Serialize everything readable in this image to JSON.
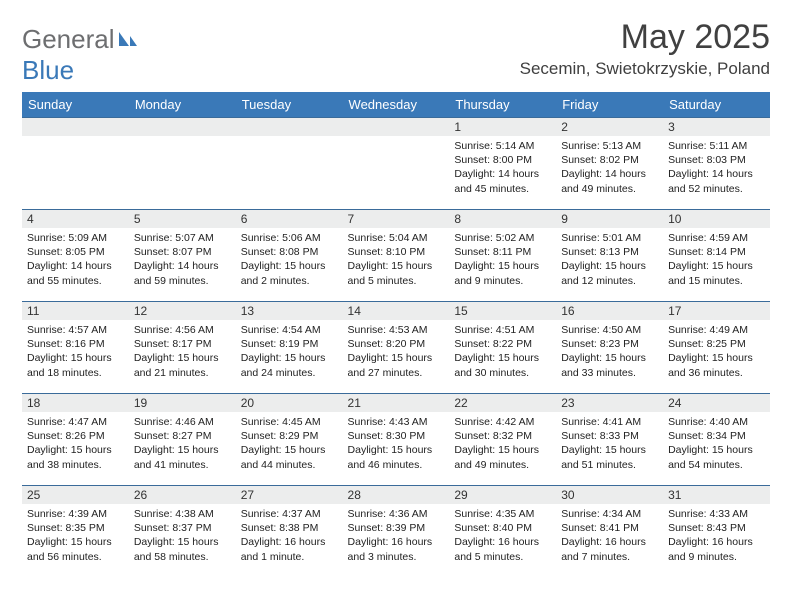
{
  "logo": {
    "general": "General",
    "blue": "Blue"
  },
  "title": "May 2025",
  "location": "Secemin, Swietokrzyskie, Poland",
  "header_bg": "#3a79b8",
  "header_text": "#ffffff",
  "daynum_bg": "#eceded",
  "border_color": "#3a6b9a",
  "weekdays": [
    "Sunday",
    "Monday",
    "Tuesday",
    "Wednesday",
    "Thursday",
    "Friday",
    "Saturday"
  ],
  "weeks": [
    [
      null,
      null,
      null,
      null,
      {
        "n": "1",
        "sr": "5:14 AM",
        "ss": "8:00 PM",
        "dl": "14 hours and 45 minutes."
      },
      {
        "n": "2",
        "sr": "5:13 AM",
        "ss": "8:02 PM",
        "dl": "14 hours and 49 minutes."
      },
      {
        "n": "3",
        "sr": "5:11 AM",
        "ss": "8:03 PM",
        "dl": "14 hours and 52 minutes."
      }
    ],
    [
      {
        "n": "4",
        "sr": "5:09 AM",
        "ss": "8:05 PM",
        "dl": "14 hours and 55 minutes."
      },
      {
        "n": "5",
        "sr": "5:07 AM",
        "ss": "8:07 PM",
        "dl": "14 hours and 59 minutes."
      },
      {
        "n": "6",
        "sr": "5:06 AM",
        "ss": "8:08 PM",
        "dl": "15 hours and 2 minutes."
      },
      {
        "n": "7",
        "sr": "5:04 AM",
        "ss": "8:10 PM",
        "dl": "15 hours and 5 minutes."
      },
      {
        "n": "8",
        "sr": "5:02 AM",
        "ss": "8:11 PM",
        "dl": "15 hours and 9 minutes."
      },
      {
        "n": "9",
        "sr": "5:01 AM",
        "ss": "8:13 PM",
        "dl": "15 hours and 12 minutes."
      },
      {
        "n": "10",
        "sr": "4:59 AM",
        "ss": "8:14 PM",
        "dl": "15 hours and 15 minutes."
      }
    ],
    [
      {
        "n": "11",
        "sr": "4:57 AM",
        "ss": "8:16 PM",
        "dl": "15 hours and 18 minutes."
      },
      {
        "n": "12",
        "sr": "4:56 AM",
        "ss": "8:17 PM",
        "dl": "15 hours and 21 minutes."
      },
      {
        "n": "13",
        "sr": "4:54 AM",
        "ss": "8:19 PM",
        "dl": "15 hours and 24 minutes."
      },
      {
        "n": "14",
        "sr": "4:53 AM",
        "ss": "8:20 PM",
        "dl": "15 hours and 27 minutes."
      },
      {
        "n": "15",
        "sr": "4:51 AM",
        "ss": "8:22 PM",
        "dl": "15 hours and 30 minutes."
      },
      {
        "n": "16",
        "sr": "4:50 AM",
        "ss": "8:23 PM",
        "dl": "15 hours and 33 minutes."
      },
      {
        "n": "17",
        "sr": "4:49 AM",
        "ss": "8:25 PM",
        "dl": "15 hours and 36 minutes."
      }
    ],
    [
      {
        "n": "18",
        "sr": "4:47 AM",
        "ss": "8:26 PM",
        "dl": "15 hours and 38 minutes."
      },
      {
        "n": "19",
        "sr": "4:46 AM",
        "ss": "8:27 PM",
        "dl": "15 hours and 41 minutes."
      },
      {
        "n": "20",
        "sr": "4:45 AM",
        "ss": "8:29 PM",
        "dl": "15 hours and 44 minutes."
      },
      {
        "n": "21",
        "sr": "4:43 AM",
        "ss": "8:30 PM",
        "dl": "15 hours and 46 minutes."
      },
      {
        "n": "22",
        "sr": "4:42 AM",
        "ss": "8:32 PM",
        "dl": "15 hours and 49 minutes."
      },
      {
        "n": "23",
        "sr": "4:41 AM",
        "ss": "8:33 PM",
        "dl": "15 hours and 51 minutes."
      },
      {
        "n": "24",
        "sr": "4:40 AM",
        "ss": "8:34 PM",
        "dl": "15 hours and 54 minutes."
      }
    ],
    [
      {
        "n": "25",
        "sr": "4:39 AM",
        "ss": "8:35 PM",
        "dl": "15 hours and 56 minutes."
      },
      {
        "n": "26",
        "sr": "4:38 AM",
        "ss": "8:37 PM",
        "dl": "15 hours and 58 minutes."
      },
      {
        "n": "27",
        "sr": "4:37 AM",
        "ss": "8:38 PM",
        "dl": "16 hours and 1 minute."
      },
      {
        "n": "28",
        "sr": "4:36 AM",
        "ss": "8:39 PM",
        "dl": "16 hours and 3 minutes."
      },
      {
        "n": "29",
        "sr": "4:35 AM",
        "ss": "8:40 PM",
        "dl": "16 hours and 5 minutes."
      },
      {
        "n": "30",
        "sr": "4:34 AM",
        "ss": "8:41 PM",
        "dl": "16 hours and 7 minutes."
      },
      {
        "n": "31",
        "sr": "4:33 AM",
        "ss": "8:43 PM",
        "dl": "16 hours and 9 minutes."
      }
    ]
  ],
  "labels": {
    "sunrise": "Sunrise:",
    "sunset": "Sunset:",
    "daylight": "Daylight:"
  }
}
